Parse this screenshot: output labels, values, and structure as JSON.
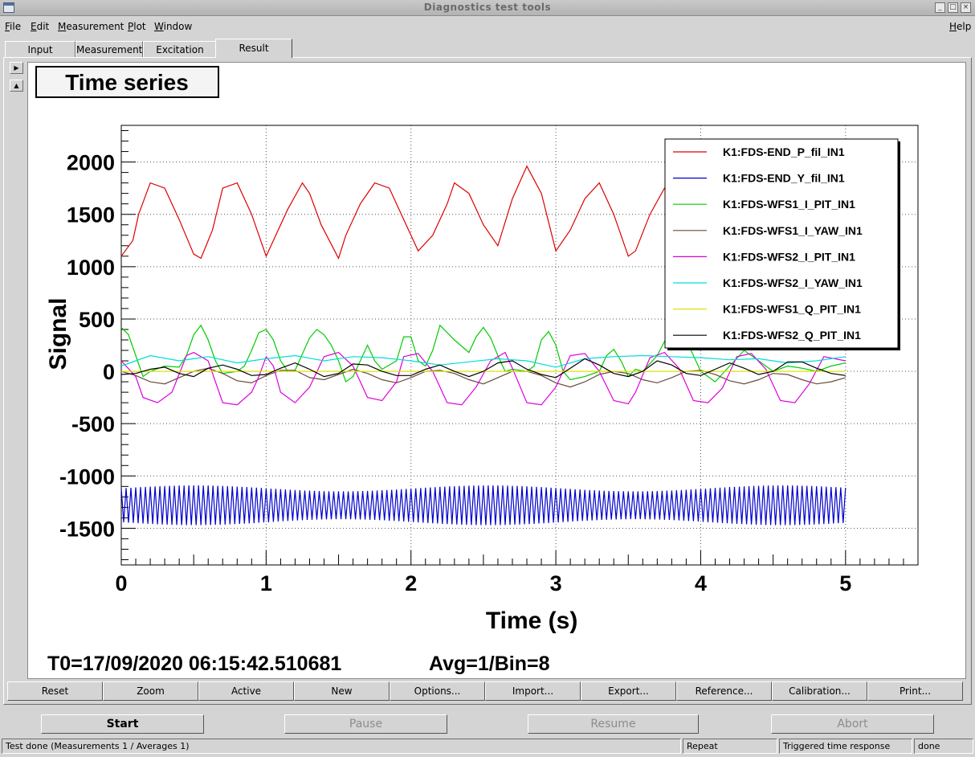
{
  "window": {
    "title": "Diagnostics test tools"
  },
  "menu": [
    {
      "label": "File",
      "u": "F",
      "rest": "ile"
    },
    {
      "label": "Edit",
      "u": "E",
      "rest": "dit"
    },
    {
      "label": "Measurement",
      "u": "M",
      "rest": "easurement"
    },
    {
      "label": "Plot",
      "u": "P",
      "rest": "lot"
    },
    {
      "label": "Window",
      "u": "W",
      "rest": "indow"
    }
  ],
  "help": {
    "u": "H",
    "rest": "elp"
  },
  "tabs": [
    "Input",
    "Measurement",
    "Excitation",
    "Result"
  ],
  "active_tab": "Result",
  "plot": {
    "title": "Time series",
    "t0_text": "T0=17/09/2020 06:15:42.510681",
    "avg_text": "Avg=1/Bin=8"
  },
  "chart_data": {
    "type": "line",
    "title": "",
    "xlabel": "Time (s)",
    "ylabel": "Signal",
    "xlim": [
      0,
      5.5
    ],
    "ylim": [
      -1850,
      2350
    ],
    "xticks": [
      0,
      1,
      2,
      3,
      4,
      5
    ],
    "yticks": [
      2000,
      1500,
      1000,
      500,
      0,
      -500,
      -1000,
      -1500
    ],
    "grid": true,
    "legend_position": "top-right",
    "series": [
      {
        "name": "K1:FDS-END_P_fil_IN1",
        "color": "#dd0000",
        "x": [
          0,
          0.08,
          0.12,
          0.2,
          0.3,
          0.4,
          0.5,
          0.55,
          0.63,
          0.7,
          0.8,
          0.9,
          1.0,
          1.05,
          1.15,
          1.25,
          1.3,
          1.38,
          1.5,
          1.55,
          1.65,
          1.75,
          1.85,
          1.95,
          2.05,
          2.15,
          2.25,
          2.3,
          2.4,
          2.5,
          2.6,
          2.7,
          2.8,
          2.9,
          3.0,
          3.1,
          3.2,
          3.3,
          3.4,
          3.5,
          3.55,
          3.65,
          3.75,
          3.8
        ],
        "y": [
          1100,
          1250,
          1500,
          1800,
          1750,
          1450,
          1120,
          1080,
          1350,
          1750,
          1800,
          1500,
          1100,
          1250,
          1550,
          1800,
          1700,
          1400,
          1080,
          1300,
          1600,
          1800,
          1750,
          1450,
          1150,
          1300,
          1600,
          1800,
          1700,
          1400,
          1200,
          1650,
          1960,
          1700,
          1150,
          1350,
          1650,
          1800,
          1500,
          1100,
          1150,
          1500,
          1750,
          1800
        ]
      },
      {
        "name": "K1:FDS-END_Y_fil_IN1",
        "color": "#0000cc",
        "x": [
          0,
          5.0
        ],
        "y": [
          -1280,
          -1280
        ],
        "amplitude": 190
      },
      {
        "name": "K1:FDS-WFS1_I_PIT_IN1",
        "color": "#00cc00",
        "x": [
          0,
          0.05,
          0.1,
          0.15,
          0.2,
          0.3,
          0.4,
          0.45,
          0.5,
          0.55,
          0.6,
          0.65,
          0.7,
          0.8,
          0.85,
          0.9,
          0.95,
          1.0,
          1.05,
          1.1,
          1.15,
          1.2,
          1.3,
          1.35,
          1.4,
          1.45,
          1.5,
          1.55,
          1.6,
          1.65,
          1.7,
          1.75,
          1.8,
          1.9,
          1.95,
          2.0,
          2.05,
          2.1,
          2.15,
          2.2,
          2.3,
          2.4,
          2.45,
          2.5,
          2.55,
          2.6,
          2.65,
          2.7,
          2.8,
          2.85,
          2.9,
          2.95,
          3.0,
          3.05,
          3.1,
          3.2,
          3.3,
          3.35,
          3.4,
          3.45,
          3.5,
          3.55,
          3.6,
          3.7,
          3.8,
          3.9,
          4.0,
          4.1,
          4.2,
          4.3,
          4.4,
          4.5,
          4.6,
          4.7,
          4.8,
          4.9,
          5.0
        ],
        "y": [
          420,
          350,
          150,
          -50,
          0,
          50,
          40,
          150,
          350,
          440,
          300,
          100,
          -20,
          0,
          50,
          200,
          370,
          400,
          300,
          100,
          0,
          10,
          320,
          400,
          350,
          250,
          100,
          -100,
          -50,
          100,
          250,
          100,
          20,
          100,
          330,
          330,
          100,
          50,
          200,
          440,
          300,
          180,
          330,
          420,
          320,
          150,
          0,
          20,
          0,
          50,
          300,
          380,
          250,
          0,
          -80,
          -50,
          0,
          150,
          210,
          100,
          -50,
          20,
          0,
          150,
          420,
          300,
          0,
          -100,
          50,
          200,
          100,
          0,
          50,
          30,
          0,
          50,
          80
        ]
      },
      {
        "name": "K1:FDS-WFS1_I_YAW_IN1",
        "color": "#6b4a3a",
        "x": [
          0,
          0.1,
          0.2,
          0.3,
          0.4,
          0.5,
          0.6,
          0.7,
          0.8,
          0.9,
          1.0,
          1.1,
          1.2,
          1.3,
          1.4,
          1.5,
          1.6,
          1.7,
          1.8,
          1.9,
          2.0,
          2.1,
          2.2,
          2.3,
          2.4,
          2.5,
          2.6,
          2.7,
          2.8,
          2.9,
          3.0,
          3.1,
          3.2,
          3.3,
          3.4,
          3.5,
          3.6,
          3.7,
          3.8,
          3.9,
          4.0,
          4.1,
          4.2,
          4.3,
          4.4,
          4.5,
          4.6,
          4.7,
          4.8,
          4.9,
          5.0
        ],
        "y": [
          0,
          -40,
          -100,
          -120,
          -60,
          0,
          30,
          -20,
          -90,
          -110,
          -40,
          10,
          10,
          -60,
          -80,
          -30,
          20,
          -20,
          -80,
          -110,
          -60,
          0,
          10,
          -20,
          -80,
          -120,
          -60,
          0,
          0,
          -40,
          -110,
          -150,
          -100,
          -30,
          0,
          -20,
          -80,
          -110,
          -60,
          0,
          10,
          -30,
          -90,
          -120,
          -80,
          -20,
          -30,
          -80,
          -120,
          -100,
          -60
        ]
      },
      {
        "name": "K1:FDS-WFS2_I_PIT_IN1",
        "color": "#dd00dd",
        "x": [
          0,
          0.1,
          0.15,
          0.25,
          0.35,
          0.45,
          0.5,
          0.6,
          0.7,
          0.8,
          0.9,
          0.95,
          1.0,
          1.05,
          1.1,
          1.2,
          1.3,
          1.4,
          1.5,
          1.6,
          1.7,
          1.8,
          1.9,
          1.95,
          2.05,
          2.15,
          2.25,
          2.35,
          2.45,
          2.55,
          2.65,
          2.7,
          2.8,
          2.9,
          3.0,
          3.1,
          3.2,
          3.3,
          3.4,
          3.5,
          3.55,
          3.65,
          3.75,
          3.85,
          3.95,
          4.05,
          4.15,
          4.25,
          4.35,
          4.45,
          4.55,
          4.65,
          4.75,
          4.85,
          5.0
        ],
        "y": [
          100,
          -50,
          -250,
          -300,
          -200,
          150,
          180,
          100,
          -300,
          -320,
          -200,
          -50,
          140,
          50,
          -200,
          -300,
          -150,
          140,
          180,
          50,
          -250,
          -280,
          -100,
          140,
          170,
          0,
          -300,
          -320,
          -150,
          100,
          180,
          30,
          -300,
          -320,
          -150,
          150,
          170,
          0,
          -280,
          -310,
          -200,
          130,
          180,
          30,
          -280,
          -300,
          -160,
          140,
          170,
          20,
          -280,
          -300,
          -120,
          140,
          100
        ]
      },
      {
        "name": "K1:FDS-WFS2_I_YAW_IN1",
        "color": "#00dddd",
        "x": [
          0,
          0.2,
          0.4,
          0.6,
          0.8,
          1.0,
          1.2,
          1.4,
          1.6,
          1.8,
          2.0,
          2.2,
          2.4,
          2.6,
          2.8,
          3.0,
          3.2,
          3.4,
          3.6,
          3.8,
          4.0,
          4.2,
          4.4,
          4.6,
          4.8,
          5.0
        ],
        "y": [
          50,
          150,
          100,
          140,
          80,
          120,
          150,
          100,
          140,
          130,
          100,
          60,
          90,
          120,
          100,
          40,
          120,
          140,
          150,
          140,
          130,
          110,
          120,
          80,
          100,
          140
        ]
      },
      {
        "name": "K1:FDS-WFS1_Q_PIT_IN1",
        "color": "#e0e000",
        "x": [
          0,
          5.0
        ],
        "y": [
          0,
          0
        ]
      },
      {
        "name": "K1:FDS-WFS2_Q_PIT_IN1",
        "color": "#000000",
        "x": [
          0,
          0.1,
          0.2,
          0.3,
          0.4,
          0.5,
          0.6,
          0.7,
          0.8,
          0.9,
          1.0,
          1.1,
          1.2,
          1.3,
          1.4,
          1.5,
          1.6,
          1.7,
          1.8,
          1.9,
          2.0,
          2.1,
          2.2,
          2.3,
          2.4,
          2.5,
          2.6,
          2.7,
          2.8,
          2.9,
          3.0,
          3.1,
          3.2,
          3.3,
          3.4,
          3.5,
          3.6,
          3.7,
          3.8,
          3.9,
          4.0,
          4.1,
          4.2,
          4.3,
          4.4,
          4.5,
          4.6,
          4.7,
          4.8,
          4.9,
          5.0
        ],
        "y": [
          -30,
          -20,
          20,
          40,
          -20,
          -50,
          30,
          60,
          20,
          -40,
          -30,
          30,
          80,
          20,
          -50,
          -20,
          70,
          60,
          0,
          -40,
          -40,
          20,
          60,
          0,
          -50,
          0,
          80,
          100,
          20,
          -30,
          -60,
          30,
          120,
          60,
          -20,
          -50,
          0,
          100,
          60,
          -20,
          -40,
          20,
          80,
          30,
          -30,
          0,
          90,
          90,
          30,
          -20,
          -40
        ]
      }
    ]
  },
  "buttons": [
    "Reset",
    "Zoom",
    "Active",
    "New",
    "Options...",
    "Import...",
    "Export...",
    "Reference...",
    "Calibration...",
    "Print..."
  ],
  "controls": [
    {
      "label": "Start",
      "enabled": true
    },
    {
      "label": "Pause",
      "enabled": false
    },
    {
      "label": "Resume",
      "enabled": false
    },
    {
      "label": "Abort",
      "enabled": false
    }
  ],
  "status": {
    "message": "Test done (Measurements 1 / Averages 1)",
    "mode": "Repeat",
    "type": "Triggered time response",
    "state": "done"
  }
}
